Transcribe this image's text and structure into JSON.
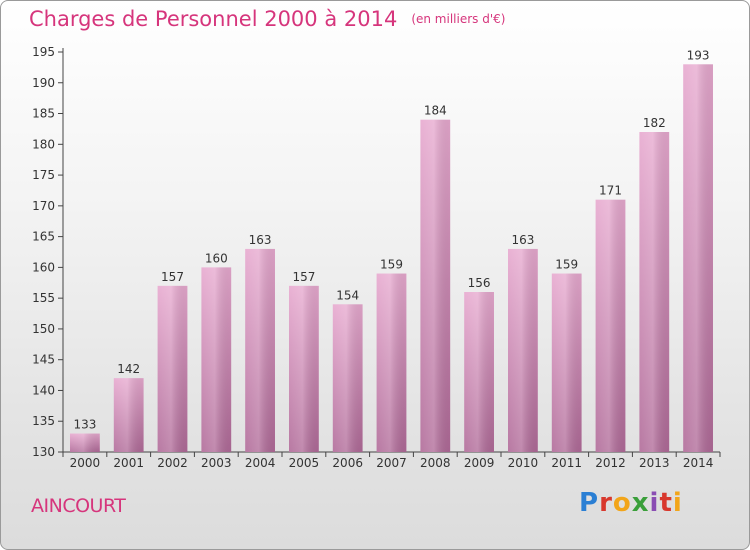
{
  "header": {
    "title": "Charges de Personnel 2000 à 2014",
    "unit": "(en milliers d'€)"
  },
  "footer": {
    "city": "AINCOURT",
    "logo": "Proxiti"
  },
  "colors": {
    "accent": "#d6357c",
    "bar_top": "#e7a9cf",
    "bar_bottom": "#b06a98"
  },
  "chart_data": {
    "type": "bar",
    "categories": [
      "2000",
      "2001",
      "2002",
      "2003",
      "2004",
      "2005",
      "2006",
      "2007",
      "2008",
      "2009",
      "2010",
      "2011",
      "2012",
      "2013",
      "2014"
    ],
    "values": [
      133,
      142,
      157,
      160,
      163,
      157,
      154,
      159,
      184,
      156,
      163,
      159,
      171,
      182,
      193
    ],
    "ylim": [
      130,
      195
    ],
    "yticks": [
      130,
      135,
      140,
      145,
      150,
      155,
      160,
      165,
      170,
      175,
      180,
      185,
      190,
      195
    ],
    "grid": false,
    "legend": "none"
  }
}
